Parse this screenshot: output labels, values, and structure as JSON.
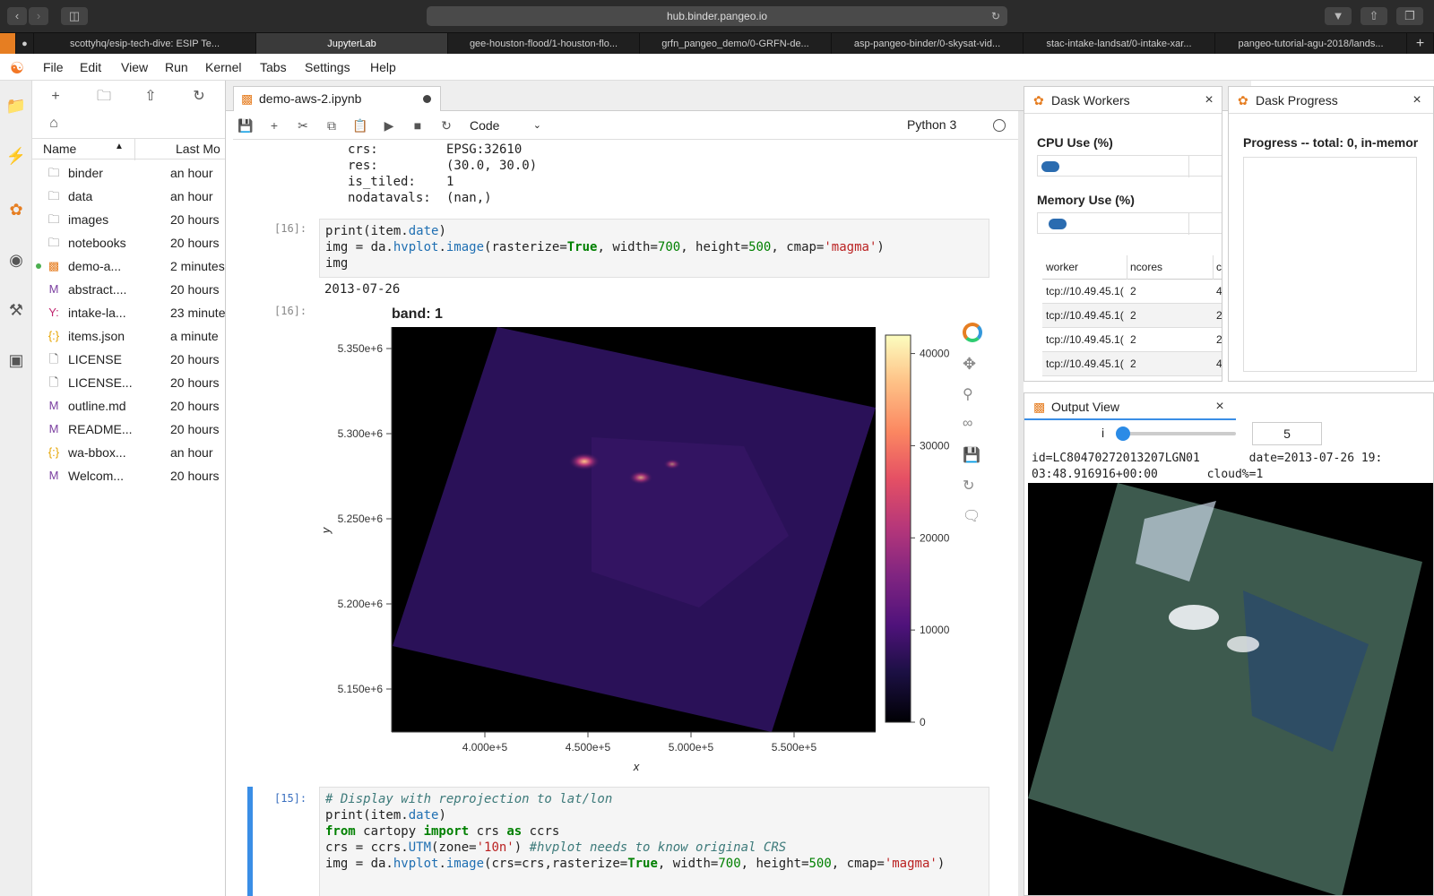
{
  "browser": {
    "url": "hub.binder.pangeo.io",
    "tabs": [
      "scottyhq/esip-tech-dive: ESIP Te...",
      "JupyterLab",
      "gee-houston-flood/1-houston-flo...",
      "grfn_pangeo_demo/0-GRFN-de...",
      "asp-pangeo-binder/0-skysat-vid...",
      "stac-intake-landsat/0-intake-xar...",
      "pangeo-tutorial-agu-2018/lands..."
    ],
    "new_tab_symbol": "+"
  },
  "menu": [
    "File",
    "Edit",
    "View",
    "Run",
    "Kernel",
    "Tabs",
    "Settings",
    "Help"
  ],
  "filebrowser": {
    "columns": {
      "name": "Name",
      "modified": "Last Mo"
    },
    "files": [
      {
        "name": "binder",
        "modified": "an hour",
        "icon": "folder-icon"
      },
      {
        "name": "data",
        "modified": "an hour",
        "icon": "folder-icon"
      },
      {
        "name": "images",
        "modified": "20 hours",
        "icon": "folder-icon"
      },
      {
        "name": "notebooks",
        "modified": "20 hours",
        "icon": "folder-icon"
      },
      {
        "name": "demo-a...",
        "modified": "2 minutes",
        "icon": "notebook-icon"
      },
      {
        "name": "abstract....",
        "modified": "20 hours",
        "icon": "markdown-icon"
      },
      {
        "name": "intake-la...",
        "modified": "23 minutes",
        "icon": "yaml-icon"
      },
      {
        "name": "items.json",
        "modified": "a minute",
        "icon": "json-icon"
      },
      {
        "name": "LICENSE",
        "modified": "20 hours",
        "icon": "file-icon"
      },
      {
        "name": "LICENSE...",
        "modified": "20 hours",
        "icon": "file-icon"
      },
      {
        "name": "outline.md",
        "modified": "20 hours",
        "icon": "markdown-icon"
      },
      {
        "name": "README...",
        "modified": "20 hours",
        "icon": "markdown-icon"
      },
      {
        "name": "wa-bbox...",
        "modified": "an hour",
        "icon": "json-icon"
      },
      {
        "name": "Welcom...",
        "modified": "20 hours",
        "icon": "markdown-icon"
      }
    ]
  },
  "notebook": {
    "tab_title": "demo-aws-2.ipynb",
    "cell_type": "Code",
    "kernel": "Python 3",
    "attrs": [
      {
        "key": "crs:",
        "value": "EPSG:32610"
      },
      {
        "key": "res:",
        "value": "(30.0, 30.0)"
      },
      {
        "key": "is_tiled:",
        "value": "1"
      },
      {
        "key": "nodatavals:",
        "value": "(nan,)"
      }
    ],
    "cell16_prompt": "[16]:",
    "cell16_line1_a": "print(item.",
    "cell16_line1_b": "date",
    "cell16_line1_c": ")",
    "cell16_line2": {
      "a": "img = da.",
      "b": "hvplot",
      "c": ".",
      "d": "image",
      "e": "(rasterize=",
      "f": "True",
      "g": ", width=",
      "h": "700",
      "i": ", height=",
      "j": "500",
      "k": ", cmap=",
      "l": "'magma'",
      "m": ")"
    },
    "cell16_line3": "img",
    "output_date": "2013-07-26",
    "out16_prompt": "[16]:",
    "cell15_prompt": "[15]:",
    "cell15": {
      "comment": "# Display with reprojection to lat/lon",
      "l2a": "print(item.",
      "l2b": "date",
      "l2c": ")",
      "l3a": "from",
      "l3b": " cartopy ",
      "l3c": "import",
      "l3d": " crs ",
      "l3e": "as",
      "l3f": " ccrs",
      "l4a": "crs = ccrs.",
      "l4b": "UTM",
      "l4c": "(zone=",
      "l4d": "'10n'",
      "l4e": ") ",
      "l4f": "#hvplot needs to know original CRS",
      "l5a": "img = da.",
      "l5b": "hvplot",
      "l5c": ".",
      "l5d": "image",
      "l5e": "(crs=crs,rasterize=",
      "l5f": "True",
      "l5g": ", width=",
      "l5h": "700",
      "l5i": ", height=",
      "l5j": "500",
      "l5k": ", cmap=",
      "l5l": "'magma'",
      "l5m": ")"
    }
  },
  "chart_data": {
    "type": "heatmap",
    "title": "band: 1",
    "xlabel": "x",
    "ylabel": "y",
    "x_ticks": [
      "4.000e+5",
      "4.500e+5",
      "5.000e+5",
      "5.500e+5"
    ],
    "y_ticks": [
      "5.350e+6",
      "5.300e+6",
      "5.250e+6",
      "5.200e+6",
      "5.150e+6"
    ],
    "colorbar_ticks": [
      "40000",
      "30000",
      "20000",
      "10000",
      "0"
    ],
    "colormap": "magma",
    "colorbar_range": [
      0,
      42000
    ]
  },
  "dask_workers": {
    "title": "Dask Workers",
    "cpu_label": "CPU Use (%)",
    "memory_label": "Memory Use (%)",
    "columns": [
      "worker",
      "ncores",
      "c"
    ],
    "rows": [
      {
        "worker": "tcp://10.49.45.1(",
        "ncores": "2",
        "c": "4"
      },
      {
        "worker": "tcp://10.49.45.1(",
        "ncores": "2",
        "c": "2"
      },
      {
        "worker": "tcp://10.49.45.1(",
        "ncores": "2",
        "c": "2"
      },
      {
        "worker": "tcp://10.49.45.1(",
        "ncores": "2",
        "c": "4"
      }
    ]
  },
  "dask_progress": {
    "title": "Dask Progress",
    "text": "Progress -- total: 0, in-memor"
  },
  "output_view": {
    "title": "Output View",
    "slider_label": "i",
    "slider_value": "5",
    "info_line1": "id=LC80470272013207LGN01       date=2013-07-26 19:",
    "info_line2": "03:48.916916+00:00       cloud%=1"
  }
}
